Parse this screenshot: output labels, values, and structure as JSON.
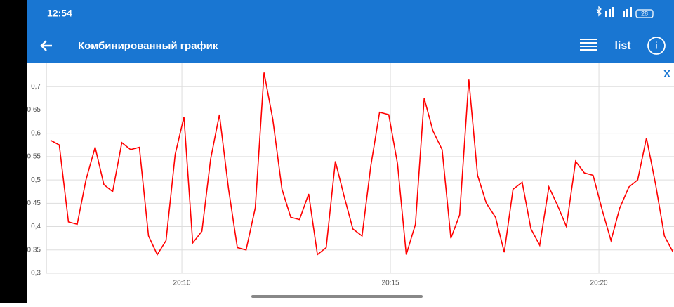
{
  "status_bar": {
    "time": "12:54",
    "battery": "28"
  },
  "app_bar": {
    "title": "Комбинированный график",
    "list_button": "list"
  },
  "close_button": "X",
  "chart_data": {
    "type": "line",
    "x": [
      6.85,
      7.06,
      7.28,
      7.49,
      7.7,
      7.92,
      8.13,
      8.34,
      8.56,
      8.77,
      8.98,
      9.2,
      9.41,
      9.62,
      9.84,
      10.05,
      10.26,
      10.48,
      10.69,
      10.9,
      11.12,
      11.33,
      11.54,
      11.76,
      11.97,
      12.18,
      12.4,
      12.61,
      12.82,
      13.04,
      13.25,
      13.46,
      13.68,
      13.89,
      14.1,
      14.32,
      14.53,
      14.74,
      14.96,
      15.17,
      15.38,
      15.6,
      15.81,
      16.02,
      16.24,
      16.45,
      16.66,
      16.88,
      17.09,
      17.3,
      17.52,
      17.73,
      17.94,
      18.16,
      18.37,
      18.58,
      18.8,
      19.01,
      19.22,
      19.44,
      19.65,
      19.86,
      20.08,
      20.29,
      20.5,
      20.72,
      20.93,
      21.14,
      21.36,
      21.57,
      21.78
    ],
    "series": [
      {
        "color": "#ff0000",
        "values": [
          0.585,
          0.575,
          0.41,
          0.405,
          0.5,
          0.57,
          0.49,
          0.475,
          0.58,
          0.565,
          0.57,
          0.38,
          0.34,
          0.37,
          0.555,
          0.635,
          0.365,
          0.39,
          0.545,
          0.64,
          0.48,
          0.355,
          0.35,
          0.44,
          0.73,
          0.63,
          0.48,
          0.42,
          0.415,
          0.47,
          0.34,
          0.355,
          0.54,
          0.465,
          0.395,
          0.38,
          0.53,
          0.645,
          0.64,
          0.535,
          0.34,
          0.405,
          0.675,
          0.605,
          0.565,
          0.375,
          0.425,
          0.715,
          0.51,
          0.45,
          0.42,
          0.345,
          0.48,
          0.495,
          0.395,
          0.36,
          0.485,
          0.445,
          0.4,
          0.54,
          0.515,
          0.51,
          0.435,
          0.37,
          0.44,
          0.485,
          0.5,
          0.59,
          0.49,
          0.38,
          0.345
        ]
      }
    ],
    "xlim": [
      6.75,
      21.8
    ],
    "xticks": [
      {
        "value": 10,
        "label": "20:10"
      },
      {
        "value": 15,
        "label": "20:15"
      },
      {
        "value": 20,
        "label": "20:20"
      }
    ],
    "ylim": [
      0.3,
      0.75
    ],
    "yticks": [
      {
        "value": 0.3,
        "label": "0,3"
      },
      {
        "value": 0.35,
        "label": "0,35"
      },
      {
        "value": 0.4,
        "label": "0,4"
      },
      {
        "value": 0.45,
        "label": "0,45"
      },
      {
        "value": 0.5,
        "label": "0,5"
      },
      {
        "value": 0.55,
        "label": "0,55"
      },
      {
        "value": 0.6,
        "label": "0,6"
      },
      {
        "value": 0.65,
        "label": "0,65"
      },
      {
        "value": 0.7,
        "label": "0,7"
      }
    ],
    "grid": true
  }
}
